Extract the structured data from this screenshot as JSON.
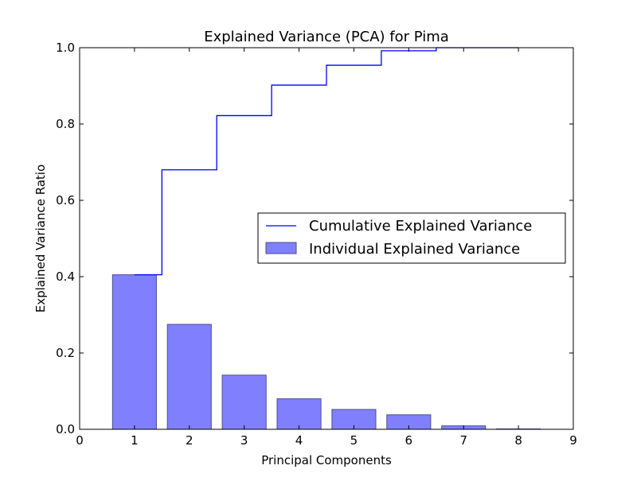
{
  "chart_data": {
    "type": "bar",
    "title": "Explained Variance (PCA) for Pima",
    "xlabel": "Principal Components",
    "ylabel": "Explained Variance Ratio",
    "xlim": [
      0,
      9
    ],
    "ylim": [
      0.0,
      1.0
    ],
    "xticks": [
      "0",
      "1",
      "2",
      "3",
      "4",
      "5",
      "6",
      "7",
      "8",
      "9"
    ],
    "yticks": [
      "0.0",
      "0.2",
      "0.4",
      "0.6",
      "0.8",
      "1.0"
    ],
    "x": [
      1,
      2,
      3,
      4,
      5,
      6,
      7,
      8
    ],
    "series": [
      {
        "name": "Individual Explained Variance",
        "type": "bar",
        "values": [
          0.405,
          0.275,
          0.142,
          0.08,
          0.052,
          0.038,
          0.009,
          0.001
        ],
        "color": "#8080ff",
        "edge_color": "#4d4d8f"
      },
      {
        "name": "Cumulative Explained Variance",
        "type": "step",
        "values": [
          0.405,
          0.68,
          0.822,
          0.902,
          0.954,
          0.992,
          1.0,
          1.0
        ],
        "color": "#0000ff"
      }
    ],
    "grid": false,
    "legend_position": "center-right"
  }
}
